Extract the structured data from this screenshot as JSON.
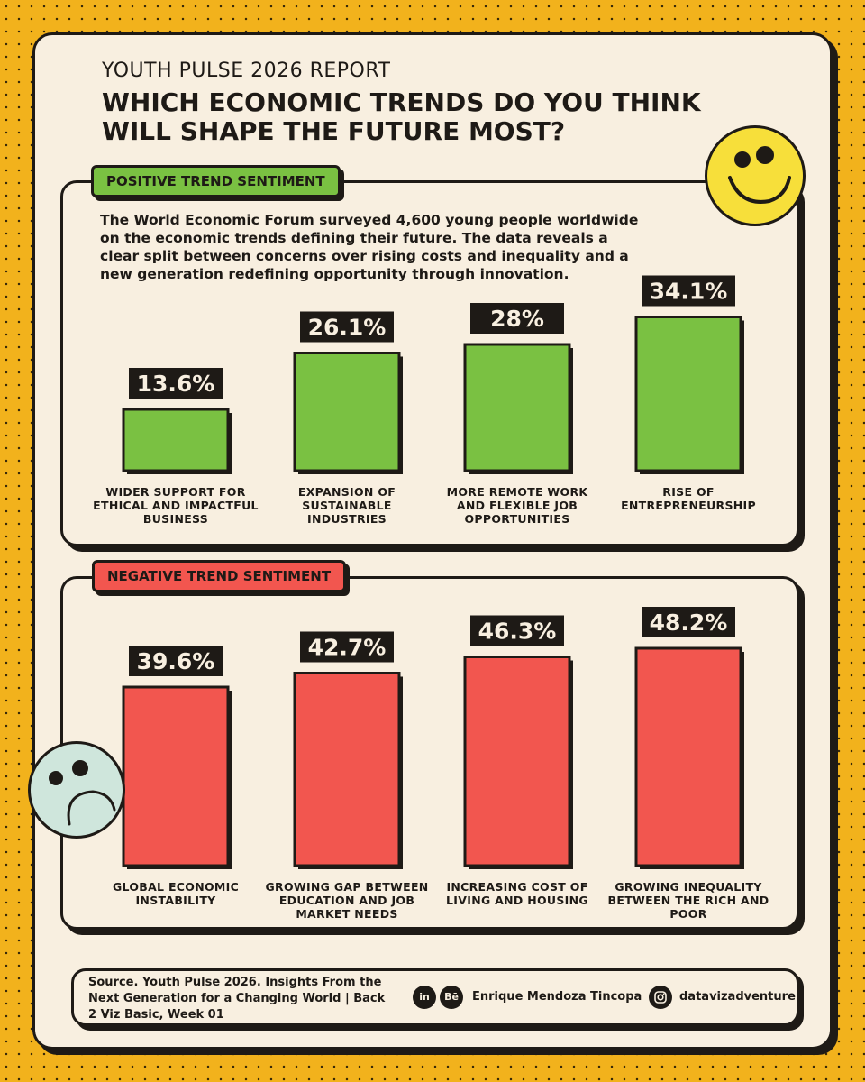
{
  "header": {
    "subtitle": "YOUTH PULSE 2026 REPORT",
    "title": "WHICH ECONOMIC TRENDS DO YOU THINK WILL SHAPE THE FUTURE MOST?"
  },
  "positive_section": {
    "tag": "POSITIVE TREND SENTIMENT",
    "description": "The World Economic Forum surveyed 4,600 young people worldwide on the economic trends defining their future. The data reveals a clear split between concerns over rising costs and inequality and a new generation redefining opportunity through innovation."
  },
  "negative_section": {
    "tag": "NEGATIVE TREND SENTIMENT"
  },
  "colors": {
    "positive": "#7ac142",
    "negative": "#f2564f",
    "ink": "#1e1a16",
    "card": "#f8efe0",
    "background": "#f2b21c"
  },
  "chart_data": [
    {
      "type": "bar",
      "title": "POSITIVE TREND SENTIMENT",
      "categories": [
        "WIDER SUPPORT FOR ETHICAL AND IMPACTFUL BUSINESS",
        "EXPANSION OF SUSTAINABLE INDUSTRIES",
        "MORE REMOTE WORK AND FLEXIBLE JOB OPPORTUNITIES",
        "RISE OF ENTREPRENEURSHIP"
      ],
      "values": [
        13.6,
        26.1,
        28,
        34.1
      ],
      "data_labels": [
        "13.6%",
        "26.1%",
        "28%",
        "34.1%"
      ],
      "unit": "%"
    },
    {
      "type": "bar",
      "title": "NEGATIVE TREND SENTIMENT",
      "categories": [
        "GLOBAL ECONOMIC INSTABILITY",
        "GROWING GAP BETWEEN EDUCATION AND JOB MARKET NEEDS",
        "INCREASING COST OF LIVING AND HOUSING",
        "GROWING INEQUALITY BETWEEN THE RICH AND POOR"
      ],
      "values": [
        39.6,
        42.7,
        46.3,
        48.2
      ],
      "data_labels": [
        "39.6%",
        "42.7%",
        "46.3%",
        "48.2%"
      ],
      "unit": "%"
    }
  ],
  "footer": {
    "source": "Source. Youth Pulse 2026. Insights From the Next Generation for a Changing World | Back 2 Viz Basic, Week 01",
    "linkedin_label": "in",
    "behance_label": "Bē",
    "author": "Enrique Mendoza Tincopa",
    "handle": "datavizadventure"
  }
}
